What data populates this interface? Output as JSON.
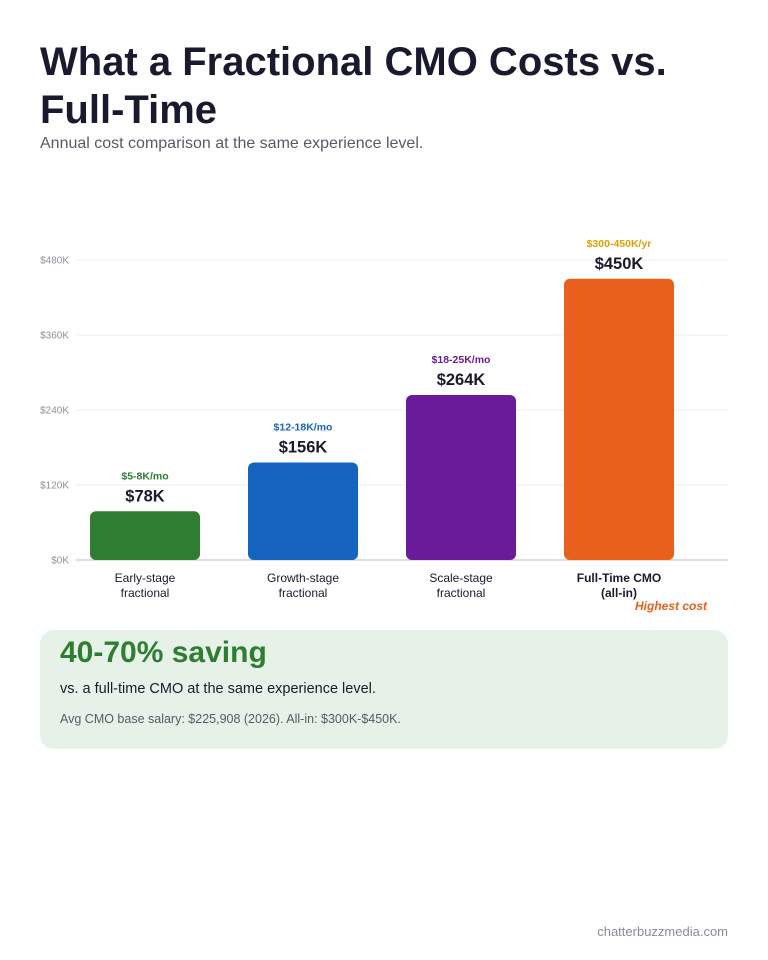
{
  "header": {
    "title": "What a Fractional CMO Costs vs. Full-Time",
    "subtitle": "Annual cost comparison at the same experience level."
  },
  "chart_data": {
    "type": "bar",
    "title": "",
    "xlabel": "",
    "ylabel": "",
    "ylim": [
      0,
      480000
    ],
    "yticks": [
      0,
      120000,
      240000,
      360000,
      480000
    ],
    "ytick_labels": [
      "$0K",
      "$120K",
      "$240K",
      "$360K",
      "$480K"
    ],
    "grid": true,
    "bars": [
      {
        "lines": [
          "Early-stage",
          "fractional"
        ],
        "value": 78000,
        "value_label": "$78K",
        "range_label": "$5-8K/mo",
        "color": "#2e7d32",
        "range_color": "#2e7d32",
        "bold": false,
        "note": ""
      },
      {
        "lines": [
          "Growth-stage",
          "fractional"
        ],
        "value": 156000,
        "value_label": "$156K",
        "range_label": "$12-18K/mo",
        "color": "#1565c0",
        "range_color": "#1565c0",
        "bold": false,
        "note": ""
      },
      {
        "lines": [
          "Scale-stage",
          "fractional"
        ],
        "value": 264000,
        "value_label": "$264K",
        "range_label": "$18-25K/mo",
        "color": "#6a1b9a",
        "range_color": "#6a1b9a",
        "bold": false,
        "note": ""
      },
      {
        "lines": [
          "Full-Time CMO",
          "(all-in)"
        ],
        "value": 450000,
        "value_label": "$450K",
        "range_label": "$300-450K/yr",
        "color": "#e8601c",
        "range_color": "#e0a100",
        "bold": true,
        "note": "Highest cost",
        "note_color": "#e8601c"
      }
    ]
  },
  "saving": {
    "headline": "40-70% saving",
    "subline": "vs. a full-time CMO at the same experience level.",
    "note": "Avg CMO base salary: $225,908 (2026). All-in: $300K-$450K."
  },
  "footer": {
    "source": "chatterbuzzmedia.com"
  }
}
